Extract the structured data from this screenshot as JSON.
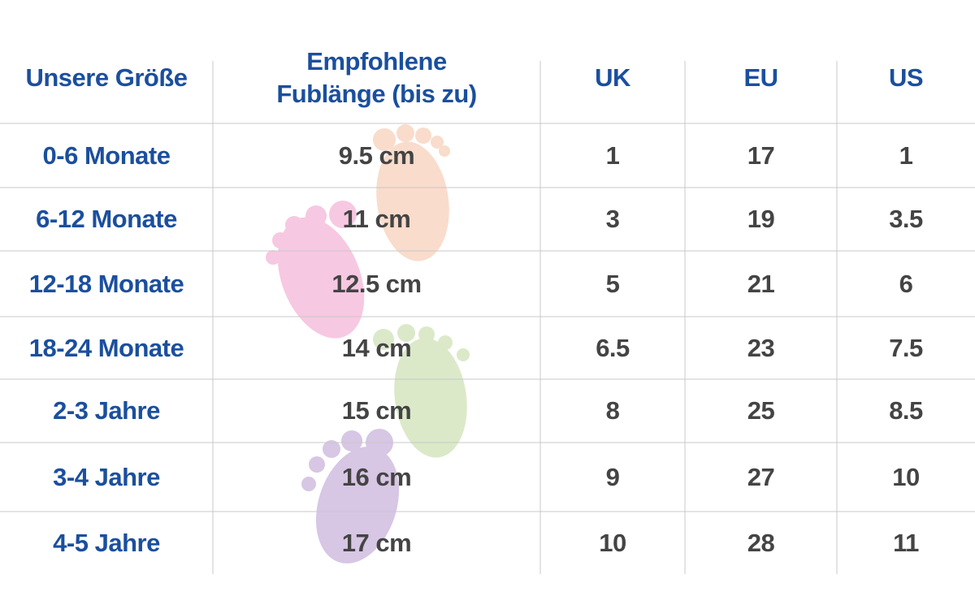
{
  "table": {
    "headers": [
      [
        "Unsere Größe"
      ],
      [
        "Empfohlene",
        "Fublänge (bis zu)"
      ],
      [
        "UK"
      ],
      [
        "EU"
      ],
      [
        "US"
      ]
    ],
    "rows": [
      [
        "0-6 Monate",
        "9.5 cm",
        "1",
        "17",
        "1"
      ],
      [
        "6-12 Monate",
        "11 cm",
        "3",
        "19",
        "3.5"
      ],
      [
        "12-18 Monate",
        "12.5 cm",
        "5",
        "21",
        "6"
      ],
      [
        "18-24 Monate",
        "14 cm",
        "6.5",
        "23",
        "7.5"
      ],
      [
        "2-3 Jahre",
        "15 cm",
        "8",
        "25",
        "8.5"
      ],
      [
        "3-4 Jahre",
        "16 cm",
        "9",
        "27",
        "10"
      ],
      [
        "4-5 Jahre",
        "17 cm",
        "10",
        "28",
        "11"
      ]
    ]
  }
}
